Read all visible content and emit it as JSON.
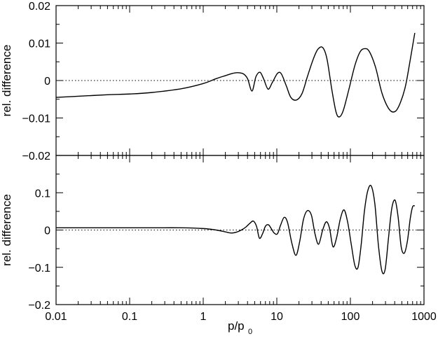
{
  "chart_data": [
    {
      "type": "line",
      "panel": "top",
      "xscale": "log",
      "xlim": [
        0.01,
        1000
      ],
      "ylim": [
        -0.02,
        0.02
      ],
      "ylabel": "rel. difference",
      "yticks": [
        -0.02,
        -0.01,
        0,
        0.01,
        0.02
      ],
      "ytick_labels": [
        "−0.02",
        "−0.01",
        "0",
        "0.01",
        "0.02"
      ],
      "reference_line": {
        "y": 0,
        "style": "dotted"
      },
      "series": [
        {
          "x": [
            0.01,
            0.02,
            0.05,
            0.1,
            0.2,
            0.5,
            1,
            1.5,
            2,
            2.5,
            2.9,
            3.5,
            4,
            4.6,
            5.2,
            5.9,
            6.6,
            7.6,
            8.7,
            10.2,
            11.5,
            13.5,
            15.5,
            18.5,
            22,
            26,
            31,
            36,
            42,
            48,
            56,
            64,
            71,
            80,
            95,
            115,
            135,
            155,
            180,
            220,
            270,
            340,
            410,
            480,
            560,
            650,
            750
          ],
          "y": [
            -0.0045,
            -0.0042,
            -0.0038,
            -0.0036,
            -0.0032,
            -0.0022,
            -0.0008,
            0.0005,
            0.0013,
            0.0019,
            0.0021,
            0.0018,
            0.0005,
            -0.0028,
            0.001,
            0.0022,
            0.0005,
            -0.0023,
            -0.0005,
            0.0019,
            0.0018,
            -0.0015,
            -0.0045,
            -0.0052,
            -0.0035,
            0.001,
            0.0055,
            0.0083,
            0.0088,
            0.0058,
            -0.0025,
            -0.0085,
            -0.0097,
            -0.008,
            -0.0025,
            0.004,
            0.0076,
            0.0085,
            0.0078,
            0.0035,
            -0.0035,
            -0.0078,
            -0.0082,
            -0.0058,
            -0.0015,
            0.0055,
            0.0127
          ]
        }
      ]
    },
    {
      "type": "line",
      "panel": "bottom",
      "xscale": "log",
      "xlim": [
        0.01,
        1000
      ],
      "ylim": [
        -0.2,
        0.2
      ],
      "xlabel": "p/p",
      "xlabel_sub": "0",
      "ylabel": "rel. difference",
      "xticks": [
        0.01,
        0.1,
        1,
        10,
        100,
        1000
      ],
      "xtick_labels": [
        "0.01",
        "0.1",
        "1",
        "10",
        "100",
        "1000"
      ],
      "yticks": [
        -0.2,
        -0.1,
        0,
        0.1
      ],
      "ytick_labels": [
        "−0.2",
        "−0.1",
        "0",
        "0.1"
      ],
      "reference_line": {
        "y": 0,
        "style": "dotted"
      },
      "series": [
        {
          "x": [
            0.01,
            0.05,
            0.2,
            0.5,
            1,
            1.5,
            2,
            2.4,
            2.8,
            3.3,
            3.8,
            4.3,
            4.8,
            5.3,
            5.8,
            6.4,
            7.0,
            7.7,
            8.4,
            9.2,
            10.2,
            11.3,
            12.6,
            14,
            16,
            18.2,
            20.5,
            23,
            26,
            29.5,
            33,
            37,
            42,
            47,
            52,
            58,
            65,
            73,
            82,
            92,
            103,
            115,
            127,
            140,
            155,
            172,
            192,
            215,
            240,
            268,
            297,
            330,
            365,
            405,
            445,
            490,
            540,
            595,
            650,
            700,
            750
          ],
          "y": [
            0.006,
            0.006,
            0.006,
            0.006,
            0.004,
            0.0,
            -0.005,
            -0.008,
            -0.006,
            0.0,
            0.008,
            0.018,
            0.024,
            0.01,
            -0.022,
            -0.01,
            0.01,
            0.014,
            0.004,
            -0.008,
            -0.01,
            0.014,
            0.034,
            0.02,
            -0.035,
            -0.068,
            -0.03,
            0.028,
            0.052,
            0.04,
            -0.01,
            -0.038,
            0.0,
            0.022,
            0.005,
            -0.045,
            -0.02,
            0.03,
            0.054,
            0.02,
            -0.04,
            -0.095,
            -0.1,
            -0.04,
            0.05,
            0.105,
            0.118,
            0.07,
            -0.04,
            -0.11,
            -0.105,
            -0.02,
            0.058,
            0.08,
            0.035,
            -0.045,
            -0.062,
            -0.03,
            0.03,
            0.062,
            0.065
          ]
        }
      ]
    }
  ]
}
